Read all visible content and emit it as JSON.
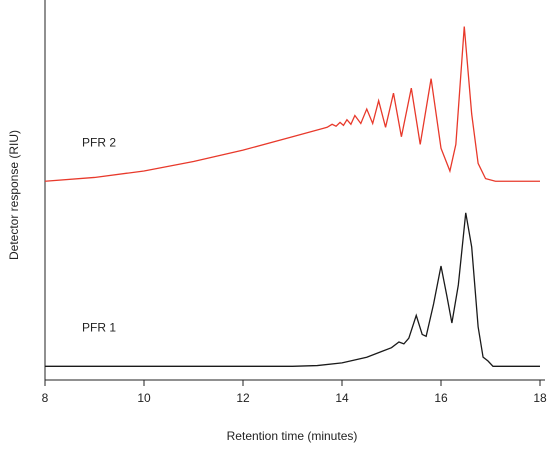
{
  "chart_data": {
    "type": "line",
    "xlabel": "Retention time (minutes)",
    "ylabel": "Detector response (RIU)",
    "xlim": [
      8,
      18
    ],
    "xticks": [
      8,
      10,
      12,
      14,
      16,
      18
    ],
    "ylim": [
      0,
      100
    ],
    "series": [
      {
        "name": "PFR 2",
        "color": "#e8392b",
        "x": [
          8,
          9,
          10,
          11,
          12,
          13,
          13.7,
          13.8,
          13.88,
          13.96,
          14.03,
          14.1,
          14.18,
          14.26,
          14.38,
          14.5,
          14.62,
          14.74,
          14.88,
          15.04,
          15.2,
          15.4,
          15.58,
          15.8,
          16.0,
          16.18,
          16.3,
          16.47,
          16.62,
          16.75,
          16.9,
          17.1,
          18
        ],
        "values": [
          52.3,
          53.3,
          55,
          57.5,
          60.5,
          64,
          66.5,
          67.3,
          66.8,
          67.8,
          67,
          68.5,
          67.3,
          69.6,
          67.5,
          71.3,
          67.5,
          73.5,
          66.5,
          75.5,
          64,
          76.8,
          62,
          79.3,
          61,
          55,
          62,
          93,
          70,
          57,
          53,
          52.3,
          52.3
        ]
      },
      {
        "name": "PFR 1",
        "color": "#1a1a1a",
        "x": [
          8,
          13,
          13.5,
          14,
          14.5,
          14.8,
          15.0,
          15.15,
          15.25,
          15.35,
          15.5,
          15.62,
          15.7,
          15.85,
          16.0,
          16.12,
          16.22,
          16.35,
          16.5,
          16.62,
          16.75,
          16.85,
          16.95,
          17.05,
          18
        ],
        "values": [
          3.6,
          3.6,
          3.8,
          4.5,
          6,
          7.5,
          8.5,
          10,
          9.5,
          11,
          17,
          12,
          11.5,
          20,
          30,
          22,
          15,
          25,
          44,
          35,
          14,
          6,
          5,
          3.6,
          3.6
        ]
      }
    ]
  }
}
